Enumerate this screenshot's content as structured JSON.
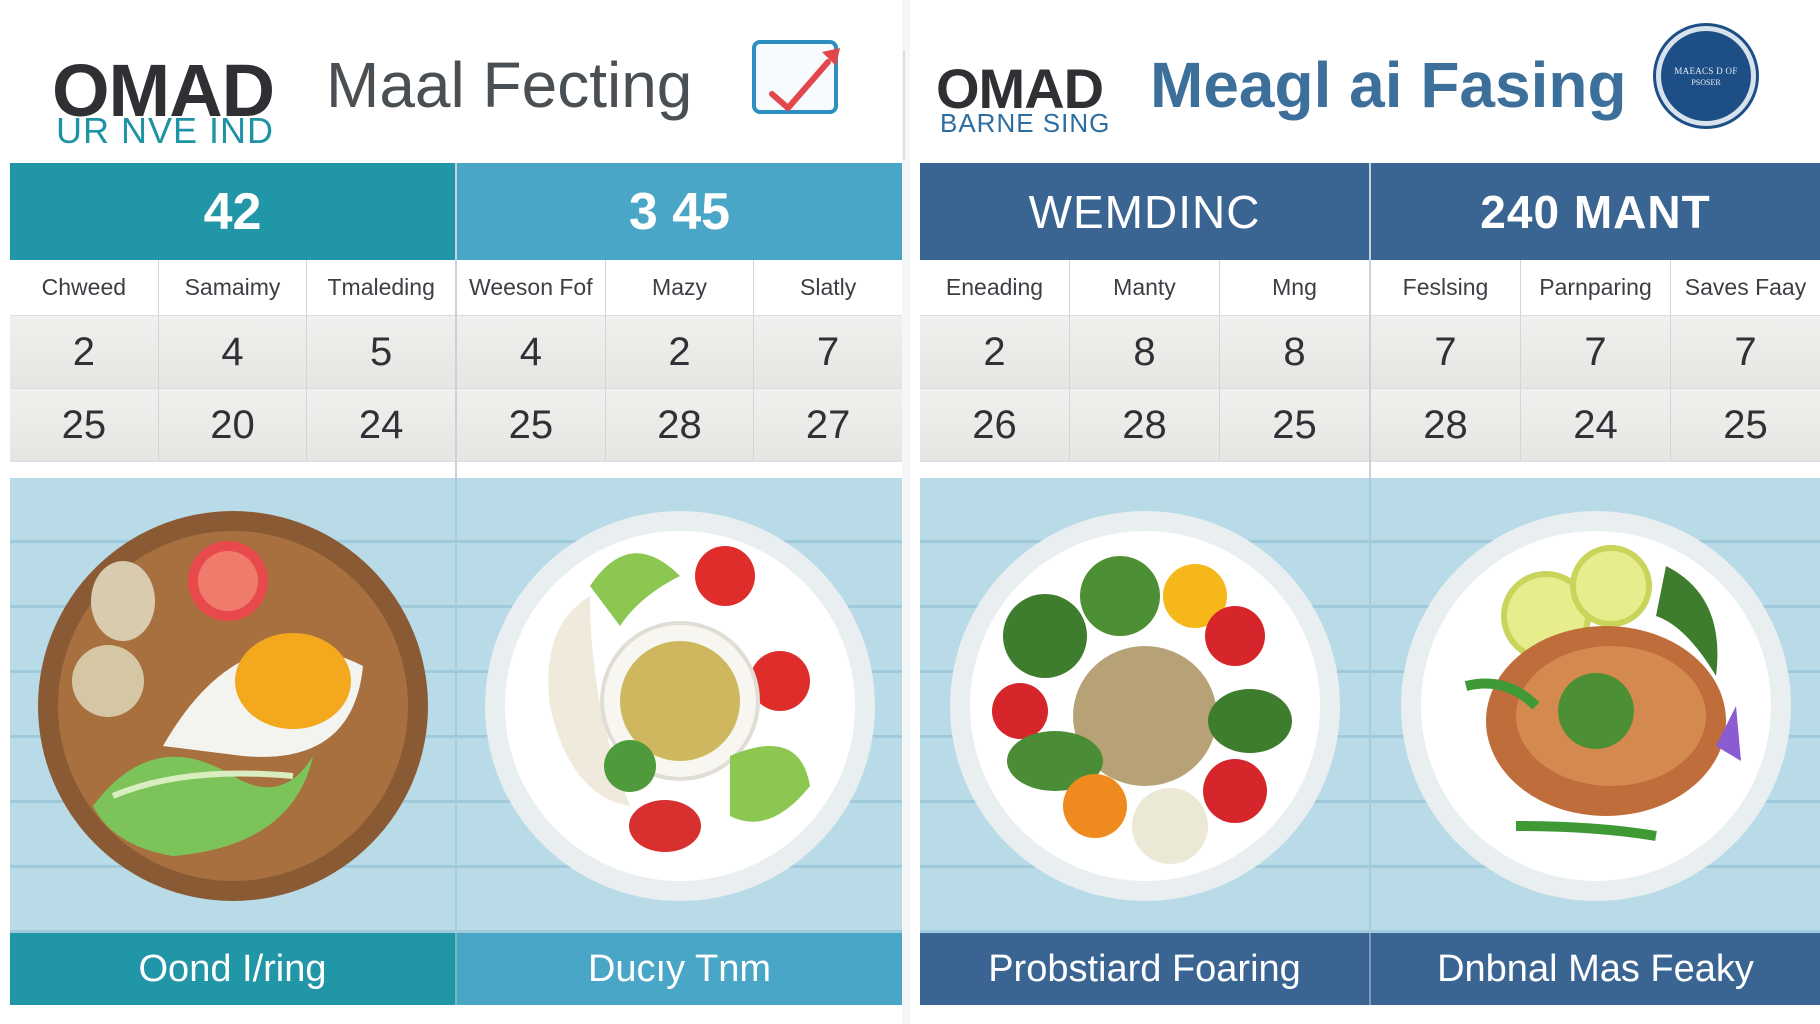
{
  "left": {
    "brand": "OMAD",
    "subtitle": "UR NVE IND",
    "title": "Maal Fecting",
    "icon": "chart-check-icon",
    "halves": [
      {
        "header": "42",
        "labels": [
          "Chweed",
          "Samaimy",
          "Tmaleding"
        ],
        "row1": [
          "2",
          "4",
          "5"
        ],
        "row2": [
          "25",
          "20",
          "24"
        ]
      },
      {
        "header": "3 45",
        "labels": [
          "Weeson Fof",
          "Mazy",
          "Slatly"
        ],
        "row1": [
          "4",
          "2",
          "7"
        ],
        "row2": [
          "25",
          "28",
          "27"
        ]
      }
    ],
    "footer": [
      "Oond Ӏ/ring",
      "Ducıy Tnm"
    ]
  },
  "right": {
    "brand": "OMAD",
    "subtitle": "BARNE SING",
    "title": "Meagl ai Fasing",
    "badge": {
      "line1": "MAEACS D OF",
      "line2": "PSOSER"
    },
    "halves": [
      {
        "header": "WEMDINC",
        "labels": [
          "Eneading",
          "Manty",
          "Mng"
        ],
        "row1": [
          "2",
          "8",
          "8"
        ],
        "row2": [
          "26",
          "28",
          "25"
        ]
      },
      {
        "header": "240 MANT",
        "labels": [
          "Feslsing",
          "Parnparing",
          "Saves Faay"
        ],
        "row1": [
          "7",
          "7",
          "7"
        ],
        "row2": [
          "28",
          "24",
          "25"
        ]
      }
    ],
    "footer": [
      "Probstiard Foaring",
      "Dnbnal Mas Feaky"
    ]
  },
  "colors": {
    "teal": "#2196a7",
    "sky": "#4aa6c6",
    "navy": "#3a6592",
    "wood": "#b9dbe7"
  }
}
